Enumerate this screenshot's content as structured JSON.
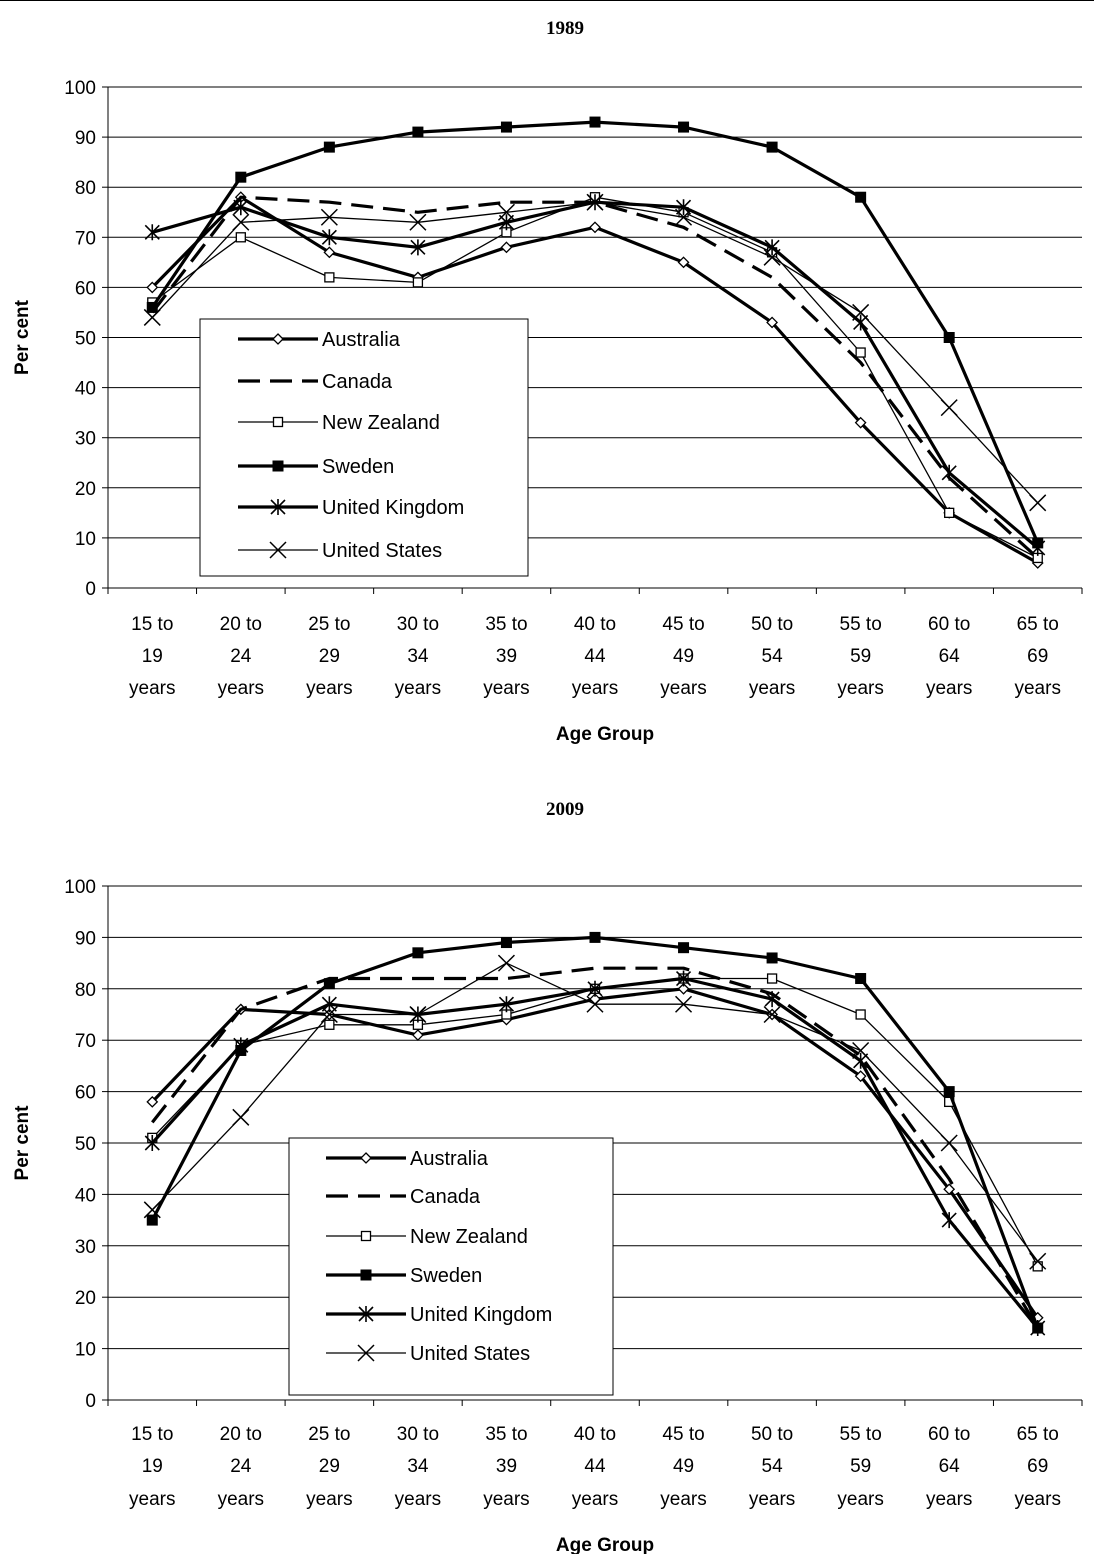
{
  "chart_data": [
    {
      "type": "line",
      "title": "1989",
      "xlabel": "Age Group",
      "ylabel": "Per cent",
      "ylim": [
        0,
        100
      ],
      "yticks": [
        "0",
        "10",
        "20",
        "30",
        "40",
        "50",
        "60",
        "70",
        "80",
        "90",
        "100"
      ],
      "grid": "horizontal",
      "legend_position": "lower-left",
      "categories": [
        [
          "15 to",
          "19",
          "years"
        ],
        [
          "20 to",
          "24",
          "years"
        ],
        [
          "25 to",
          "29",
          "years"
        ],
        [
          "30 to",
          "34",
          "years"
        ],
        [
          "35 to",
          "39",
          "years"
        ],
        [
          "40 to",
          "44",
          "years"
        ],
        [
          "45 to",
          "49",
          "years"
        ],
        [
          "50 to",
          "54",
          "years"
        ],
        [
          "55 to",
          "59",
          "years"
        ],
        [
          "60 to",
          "64",
          "years"
        ],
        [
          "65 to",
          "69",
          "years"
        ]
      ],
      "series": [
        {
          "name": "Australia",
          "marker": "diamond",
          "dash": "solid",
          "weight": "thick",
          "values": [
            60,
            78,
            67,
            62,
            68,
            72,
            65,
            53,
            33,
            15,
            5
          ]
        },
        {
          "name": "Canada",
          "marker": "none",
          "dash": "dashed",
          "weight": "thick",
          "values": [
            55,
            78,
            77,
            75,
            77,
            77,
            72,
            62,
            45,
            22,
            6
          ]
        },
        {
          "name": "New Zealand",
          "marker": "square-open",
          "dash": "solid",
          "weight": "thin",
          "values": [
            57,
            70,
            62,
            61,
            71,
            78,
            75,
            67,
            47,
            15,
            6
          ]
        },
        {
          "name": "Sweden",
          "marker": "square-filled",
          "dash": "solid",
          "weight": "thick",
          "values": [
            56,
            82,
            88,
            91,
            92,
            93,
            92,
            88,
            78,
            50,
            9
          ]
        },
        {
          "name": "United Kingdom",
          "marker": "asterisk",
          "dash": "solid",
          "weight": "thick",
          "values": [
            71,
            76,
            70,
            68,
            73,
            77,
            76,
            68,
            53,
            23,
            8
          ]
        },
        {
          "name": "United States",
          "marker": "x",
          "dash": "solid",
          "weight": "thin",
          "values": [
            54,
            73,
            74,
            73,
            75,
            77,
            74,
            66,
            55,
            36,
            17
          ]
        }
      ]
    },
    {
      "type": "line",
      "title": "2009",
      "xlabel": "Age Group",
      "ylabel": "Per cent",
      "ylim": [
        0,
        100
      ],
      "yticks": [
        "0",
        "10",
        "20",
        "30",
        "40",
        "50",
        "60",
        "70",
        "80",
        "90",
        "100"
      ],
      "grid": "horizontal",
      "legend_position": "lower-left",
      "categories": [
        [
          "15 to",
          "19",
          "years"
        ],
        [
          "20 to",
          "24",
          "years"
        ],
        [
          "25 to",
          "29",
          "years"
        ],
        [
          "30 to",
          "34",
          "years"
        ],
        [
          "35 to",
          "39",
          "years"
        ],
        [
          "40 to",
          "44",
          "years"
        ],
        [
          "45 to",
          "49",
          "years"
        ],
        [
          "50 to",
          "54",
          "years"
        ],
        [
          "55 to",
          "59",
          "years"
        ],
        [
          "60 to",
          "64",
          "years"
        ],
        [
          "65 to",
          "69",
          "years"
        ]
      ],
      "series": [
        {
          "name": "Australia",
          "marker": "diamond",
          "dash": "solid",
          "weight": "thick",
          "values": [
            58,
            76,
            75,
            71,
            74,
            78,
            80,
            75,
            63,
            41,
            16
          ]
        },
        {
          "name": "Canada",
          "marker": "none",
          "dash": "dashed",
          "weight": "thick",
          "values": [
            54,
            76,
            82,
            82,
            82,
            84,
            84,
            79,
            67,
            43,
            14
          ]
        },
        {
          "name": "New Zealand",
          "marker": "square-open",
          "dash": "solid",
          "weight": "thin",
          "values": [
            51,
            69,
            73,
            73,
            75,
            80,
            82,
            82,
            75,
            58,
            26
          ]
        },
        {
          "name": "Sweden",
          "marker": "square-filled",
          "dash": "solid",
          "weight": "thick",
          "values": [
            35,
            68,
            81,
            87,
            89,
            90,
            88,
            86,
            82,
            60,
            14
          ]
        },
        {
          "name": "United Kingdom",
          "marker": "asterisk",
          "dash": "solid",
          "weight": "thick",
          "values": [
            50,
            69,
            77,
            75,
            77,
            80,
            82,
            78,
            66,
            35,
            14
          ]
        },
        {
          "name": "United States",
          "marker": "x",
          "dash": "solid",
          "weight": "thin",
          "values": [
            37,
            55,
            75,
            75,
            85,
            77,
            77,
            75,
            68,
            50,
            27
          ]
        }
      ]
    }
  ]
}
